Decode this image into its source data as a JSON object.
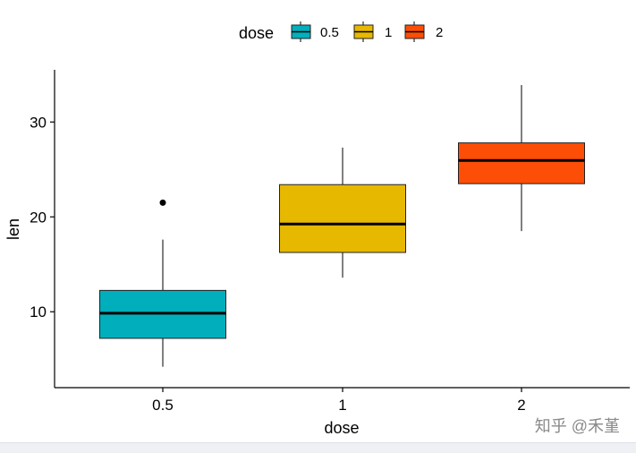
{
  "chart_data": {
    "type": "box",
    "xlabel": "dose",
    "ylabel": "len",
    "categories": [
      "0.5",
      "1",
      "2"
    ],
    "ylim": [
      2,
      35.5
    ],
    "yticks": [
      10,
      20,
      30
    ],
    "boxes": [
      {
        "name": "0.5",
        "color": "#00AFBB",
        "min": 4.2,
        "q1": 7.2,
        "median": 9.85,
        "q3": 12.25,
        "max": 17.6,
        "outliers": [
          21.5
        ]
      },
      {
        "name": "1",
        "color": "#E7B800",
        "min": 13.6,
        "q1": 16.25,
        "median": 19.25,
        "q3": 23.4,
        "max": 27.3,
        "outliers": []
      },
      {
        "name": "2",
        "color": "#FC4E07",
        "min": 18.5,
        "q1": 23.5,
        "median": 25.95,
        "q3": 27.8,
        "max": 33.9,
        "outliers": []
      }
    ],
    "legend": {
      "title": "dose",
      "position": "top",
      "items": [
        {
          "label": "0.5",
          "color": "#00AFBB"
        },
        {
          "label": "1",
          "color": "#E7B800"
        },
        {
          "label": "2",
          "color": "#FC4E07"
        }
      ]
    }
  },
  "watermark": "知乎 @禾堇"
}
